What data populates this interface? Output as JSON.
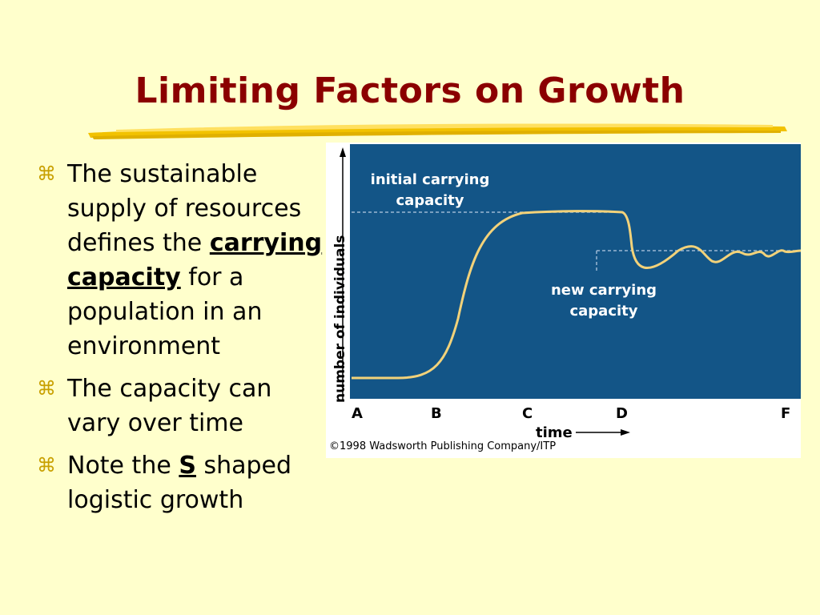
{
  "slide": {
    "title": "Limiting Factors on Growth",
    "bullet_symbol": "⌘",
    "bullets": [
      {
        "pre": "The sustainable supply of resources defines the ",
        "bold": "carrying capacity",
        "post": " for a population in an environment"
      },
      {
        "pre": "The capacity can vary over time",
        "bold": "",
        "post": ""
      },
      {
        "pre": "Note the ",
        "bold": "S",
        "post": " shaped logistic growth"
      }
    ],
    "colors": {
      "background": "#ffffcc",
      "title": "#8b0000",
      "bullet_mark": "#c8a000"
    }
  },
  "figure": {
    "labels": {
      "initial_line1": "initial carrying",
      "initial_line2": "capacity",
      "new_line1": "new carrying",
      "new_line2": "capacity",
      "y_axis": "number of individuals",
      "x_axis": "time"
    },
    "x_ticks": [
      "A",
      "B",
      "C",
      "D",
      "F"
    ],
    "credit": "©1998 Wadsworth Publishing Company/ITP",
    "colors": {
      "panel": "#135587",
      "curve": "#f2d27a",
      "text": "#ffffff",
      "dashes": "#9bb8d4"
    }
  }
}
